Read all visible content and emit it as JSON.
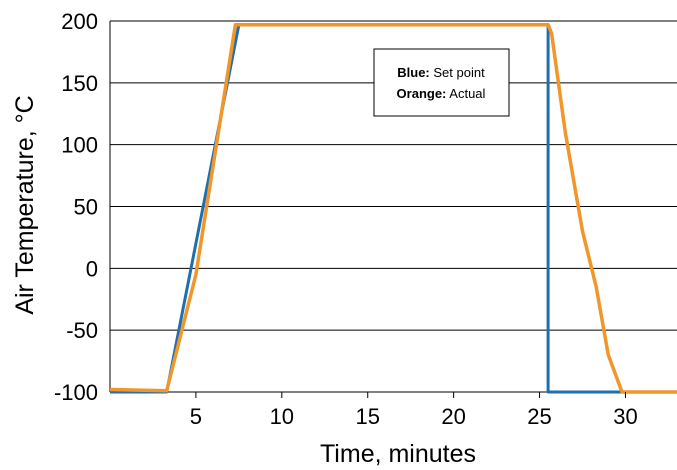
{
  "chart_data": {
    "type": "line",
    "xlabel": "Time, minutes",
    "ylabel": "Air Temperature, °C",
    "xlim": [
      0,
      33
    ],
    "ylim": [
      -100,
      200
    ],
    "x_ticks": [
      5,
      10,
      15,
      20,
      25,
      30
    ],
    "y_ticks": [
      200,
      150,
      100,
      50,
      0,
      -50,
      -100
    ],
    "grid": "horizontal",
    "legend": {
      "placement": "top-right",
      "entries": [
        {
          "key": "Blue:",
          "label": "Set point"
        },
        {
          "key": "Orange:",
          "label": "Actual"
        }
      ]
    },
    "series": [
      {
        "name": "Set point",
        "color": "#1f6fb0",
        "points": [
          [
            0,
            -100
          ],
          [
            3.3,
            -100
          ],
          [
            7.5,
            197
          ],
          [
            25.5,
            197
          ],
          [
            25.5,
            -100
          ],
          [
            33,
            -100
          ]
        ]
      },
      {
        "name": "Actual",
        "color": "#f0962a",
        "points": [
          [
            0,
            -98
          ],
          [
            3.3,
            -99
          ],
          [
            5,
            -5
          ],
          [
            7.3,
            197
          ],
          [
            25.5,
            197
          ],
          [
            25.7,
            190
          ],
          [
            26.5,
            110
          ],
          [
            27.5,
            30
          ],
          [
            28.3,
            -15
          ],
          [
            29,
            -70
          ],
          [
            29.8,
            -100
          ],
          [
            33,
            -100
          ]
        ]
      }
    ]
  }
}
